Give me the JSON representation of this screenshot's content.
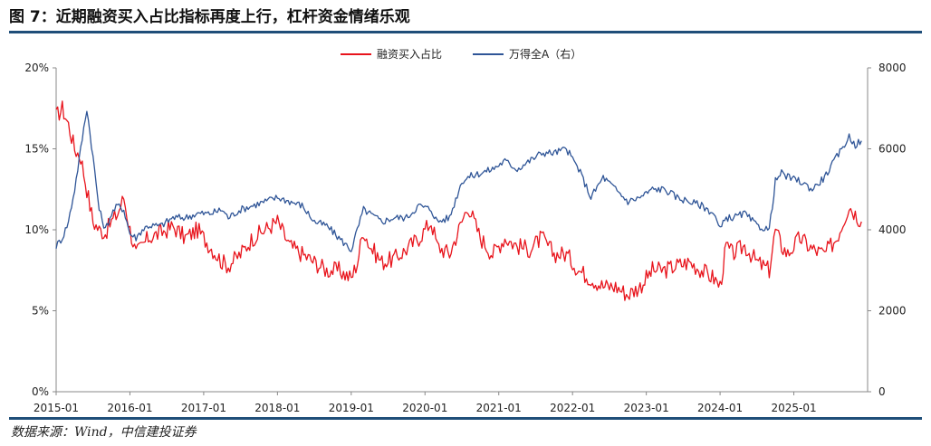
{
  "header": {
    "title": "图 7：近期融资买入占比指标再度上行，杠杆资金情绪乐观"
  },
  "footer": {
    "source": "数据来源：Wind，中信建投证券"
  },
  "colors": {
    "red": "#e8141c",
    "blue": "#2f5597",
    "rule": "#1f4e79"
  },
  "chart_data": {
    "type": "line",
    "title": "图 7：近期融资买入占比指标再度上行，杠杆资金情绪乐观",
    "legend_position": "top-center",
    "grid": false,
    "y_left": {
      "range": [
        0,
        20
      ],
      "ticks": [
        "0%",
        "5%",
        "10%",
        "15%",
        "20%"
      ]
    },
    "y_right": {
      "range": [
        0,
        8000
      ],
      "ticks": [
        "0",
        "2000",
        "4000",
        "6000",
        "8000"
      ]
    },
    "x_range": [
      "2015-01",
      "2025-12"
    ],
    "x_ticks": [
      "2015-01",
      "2016-01",
      "2017-01",
      "2018-01",
      "2019-01",
      "2020-01",
      "2021-01",
      "2022-01",
      "2023-01",
      "2024-01",
      "2025-01"
    ],
    "series": [
      {
        "name": "融资买入占比",
        "axis": "left",
        "color": "#e8141c",
        "x": [
          "2015-01",
          "2015-02",
          "2015-03",
          "2015-04",
          "2015-05",
          "2015-06",
          "2015-07",
          "2015-08",
          "2015-09",
          "2015-10",
          "2015-11",
          "2015-12",
          "2016-01",
          "2016-02",
          "2016-03",
          "2016-04",
          "2016-06",
          "2016-08",
          "2016-10",
          "2016-12",
          "2017-02",
          "2017-04",
          "2017-05",
          "2017-07",
          "2017-09",
          "2017-11",
          "2018-01",
          "2018-03",
          "2018-05",
          "2018-07",
          "2018-09",
          "2018-11",
          "2019-01",
          "2019-02",
          "2019-03",
          "2019-04",
          "2019-06",
          "2019-08",
          "2019-10",
          "2019-12",
          "2020-02",
          "2020-03",
          "2020-05",
          "2020-07",
          "2020-08",
          "2020-10",
          "2020-12",
          "2021-02",
          "2021-04",
          "2021-06",
          "2021-08",
          "2021-10",
          "2021-12",
          "2022-02",
          "2022-04",
          "2022-06",
          "2022-08",
          "2022-10",
          "2022-12",
          "2023-02",
          "2023-04",
          "2023-06",
          "2023-08",
          "2023-10",
          "2023-12",
          "2024-01",
          "2024-02",
          "2024-03",
          "2024-05",
          "2024-07",
          "2024-09",
          "2024-10",
          "2024-11",
          "2024-12",
          "2025-02",
          "2025-04",
          "2025-06",
          "2025-08",
          "2025-10",
          "2025-11",
          "2025-12"
        ],
        "y": [
          17.0,
          17.5,
          16.5,
          15.0,
          14.5,
          12.5,
          10.5,
          10.0,
          9.8,
          10.5,
          11.0,
          12.0,
          10.0,
          8.5,
          9.0,
          9.5,
          9.8,
          10.2,
          9.5,
          10.0,
          9.0,
          8.0,
          7.8,
          8.5,
          9.5,
          10.0,
          10.5,
          9.0,
          8.5,
          8.0,
          7.5,
          7.5,
          7.0,
          8.0,
          10.0,
          9.0,
          8.0,
          8.2,
          8.8,
          9.5,
          10.5,
          9.0,
          8.5,
          10.5,
          11.5,
          9.5,
          8.5,
          9.5,
          9.0,
          8.8,
          9.5,
          8.5,
          8.5,
          7.5,
          7.0,
          6.5,
          6.5,
          6.0,
          6.5,
          7.5,
          7.5,
          7.8,
          8.0,
          7.5,
          7.0,
          6.5,
          9.0,
          8.5,
          9.0,
          8.0,
          7.5,
          10.0,
          9.0,
          8.5,
          9.5,
          8.8,
          8.5,
          9.5,
          11.5,
          11.0,
          10.5
        ]
      },
      {
        "name": "万得全A（右）",
        "axis": "right",
        "color": "#2f5597",
        "x": [
          "2015-01",
          "2015-02",
          "2015-03",
          "2015-04",
          "2015-05",
          "2015-06",
          "2015-07",
          "2015-08",
          "2015-09",
          "2015-10",
          "2015-11",
          "2015-12",
          "2016-01",
          "2016-02",
          "2016-03",
          "2016-04",
          "2016-06",
          "2016-08",
          "2016-10",
          "2016-12",
          "2017-02",
          "2017-04",
          "2017-05",
          "2017-07",
          "2017-09",
          "2017-11",
          "2018-01",
          "2018-03",
          "2018-05",
          "2018-07",
          "2018-09",
          "2018-11",
          "2019-01",
          "2019-02",
          "2019-03",
          "2019-04",
          "2019-06",
          "2019-08",
          "2019-10",
          "2019-12",
          "2020-02",
          "2020-03",
          "2020-05",
          "2020-07",
          "2020-08",
          "2020-10",
          "2020-12",
          "2021-02",
          "2021-04",
          "2021-06",
          "2021-08",
          "2021-10",
          "2021-12",
          "2022-02",
          "2022-04",
          "2022-06",
          "2022-08",
          "2022-10",
          "2022-12",
          "2023-02",
          "2023-04",
          "2023-06",
          "2023-08",
          "2023-10",
          "2023-12",
          "2024-01",
          "2024-02",
          "2024-03",
          "2024-05",
          "2024-07",
          "2024-09",
          "2024-10",
          "2024-11",
          "2024-12",
          "2025-02",
          "2025-04",
          "2025-06",
          "2025-08",
          "2025-10",
          "2025-11",
          "2025-12"
        ],
        "y": [
          3600,
          3800,
          4200,
          5000,
          6000,
          7000,
          5800,
          4500,
          4000,
          4400,
          4600,
          4500,
          3900,
          3800,
          4000,
          4100,
          4100,
          4300,
          4300,
          4400,
          4400,
          4500,
          4300,
          4500,
          4600,
          4700,
          4800,
          4700,
          4600,
          4200,
          4100,
          3800,
          3500,
          4000,
          4500,
          4400,
          4200,
          4300,
          4300,
          4600,
          4500,
          4200,
          4300,
          5200,
          5300,
          5400,
          5500,
          5700,
          5500,
          5700,
          5900,
          5900,
          6000,
          5500,
          4800,
          5300,
          5000,
          4700,
          4800,
          5000,
          5000,
          4800,
          4700,
          4600,
          4400,
          4000,
          4300,
          4300,
          4400,
          4100,
          4000,
          5200,
          5400,
          5300,
          5200,
          5000,
          5300,
          5800,
          6300,
          6100,
          6200
        ]
      }
    ]
  }
}
